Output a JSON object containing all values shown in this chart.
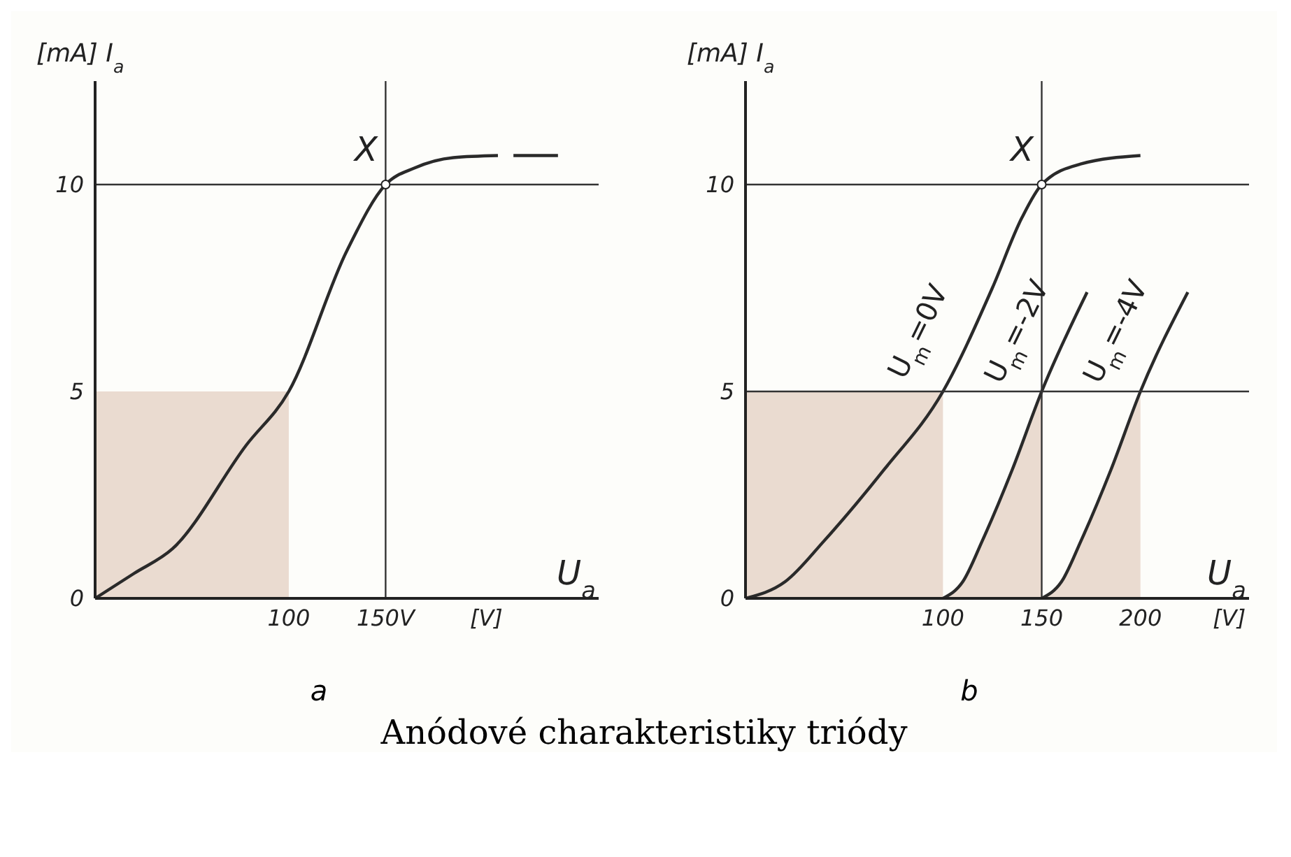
{
  "chart_data": [
    {
      "type": "line",
      "xlabel": "U$_{a}$",
      "ylabel": "[mA] I$_{a}$",
      "xlim": [
        0,
        260
      ],
      "ylim": [
        0,
        12.5
      ],
      "xticks": [
        100,
        {
          "value": 150,
          "label": "150V"
        },
        {
          "value": 202,
          "label": "[V]"
        }
      ],
      "yticks": [
        0,
        5,
        10
      ],
      "ref_lines": [
        {
          "axis": "y",
          "value": 10,
          "color": "#333333"
        },
        {
          "axis": "x",
          "value": 150,
          "color": "#333333"
        }
      ],
      "annotations": [
        {
          "text": "X",
          "x": 150,
          "y": 10
        },
        "a"
      ],
      "series": [
        {
          "type": "area",
          "color": "#eadbd0",
          "x": [
            0,
            100
          ],
          "values": [
            5,
            5
          ]
        },
        {
          "color": "#2a2a2a",
          "x": [
            0,
            20,
            40,
            78,
            100,
            130,
            150,
            165,
            185,
            208,
            212,
            216,
            239
          ],
          "values": [
            0,
            0.6,
            1.2,
            3.7,
            5,
            8.4,
            10,
            10.4,
            10.65,
            10.7,
            null,
            10.7,
            10.7
          ]
        }
      ]
    },
    {
      "type": "line",
      "xlabel": "U$_{a}$",
      "ylabel": "[mA] I$_{a}$",
      "xlim": [
        0,
        255
      ],
      "ylim": [
        0,
        12.5
      ],
      "xticks": [
        100,
        150,
        200,
        {
          "value": 245,
          "label": "[V]"
        }
      ],
      "yticks": [
        0,
        5,
        10
      ],
      "ref_lines": [
        {
          "axis": "y",
          "value": 10,
          "color": "#333333"
        },
        {
          "axis": "y",
          "value": 5,
          "color": "#333333"
        },
        {
          "axis": "x",
          "value": 150,
          "color": "#333333"
        }
      ],
      "annotations": [
        {
          "text": "X",
          "x": 150,
          "y": 10
        },
        "b",
        "Anódové charakteristiky triódy"
      ],
      "series": [
        {
          "type": "area",
          "color": "#eadbd0",
          "x": [
            0,
            100
          ],
          "values": [
            5,
            5
          ]
        },
        {
          "type": "area",
          "color": "#eadbd0",
          "x": [
            100,
            110,
            120,
            135,
            150
          ],
          "values": [
            0,
            0.4,
            1.4,
            3.1,
            5
          ]
        },
        {
          "type": "area",
          "color": "#eadbd0",
          "x": [
            150,
            160,
            170,
            185,
            200
          ],
          "values": [
            0,
            0.4,
            1.4,
            3.1,
            5
          ]
        },
        {
          "name": "U$_{m}$=0V",
          "color": "#2a2a2a",
          "x": [
            0,
            20,
            40,
            70,
            100,
            125,
            140,
            150,
            170,
            200
          ],
          "values": [
            0,
            0.4,
            1.4,
            3.1,
            5,
            7.5,
            9.2,
            10,
            10.5,
            10.7
          ]
        },
        {
          "name": "U$_{m}$=-2V",
          "color": "#2a2a2a",
          "x": [
            100,
            110,
            120,
            135,
            150,
            173
          ],
          "values": [
            0,
            0.4,
            1.4,
            3.1,
            5,
            7.4
          ]
        },
        {
          "name": "U$_{m}$=-4V",
          "color": "#2a2a2a",
          "x": [
            150,
            160,
            170,
            185,
            200,
            224
          ],
          "values": [
            0,
            0.4,
            1.4,
            3.1,
            5,
            7.4
          ]
        }
      ]
    }
  ]
}
